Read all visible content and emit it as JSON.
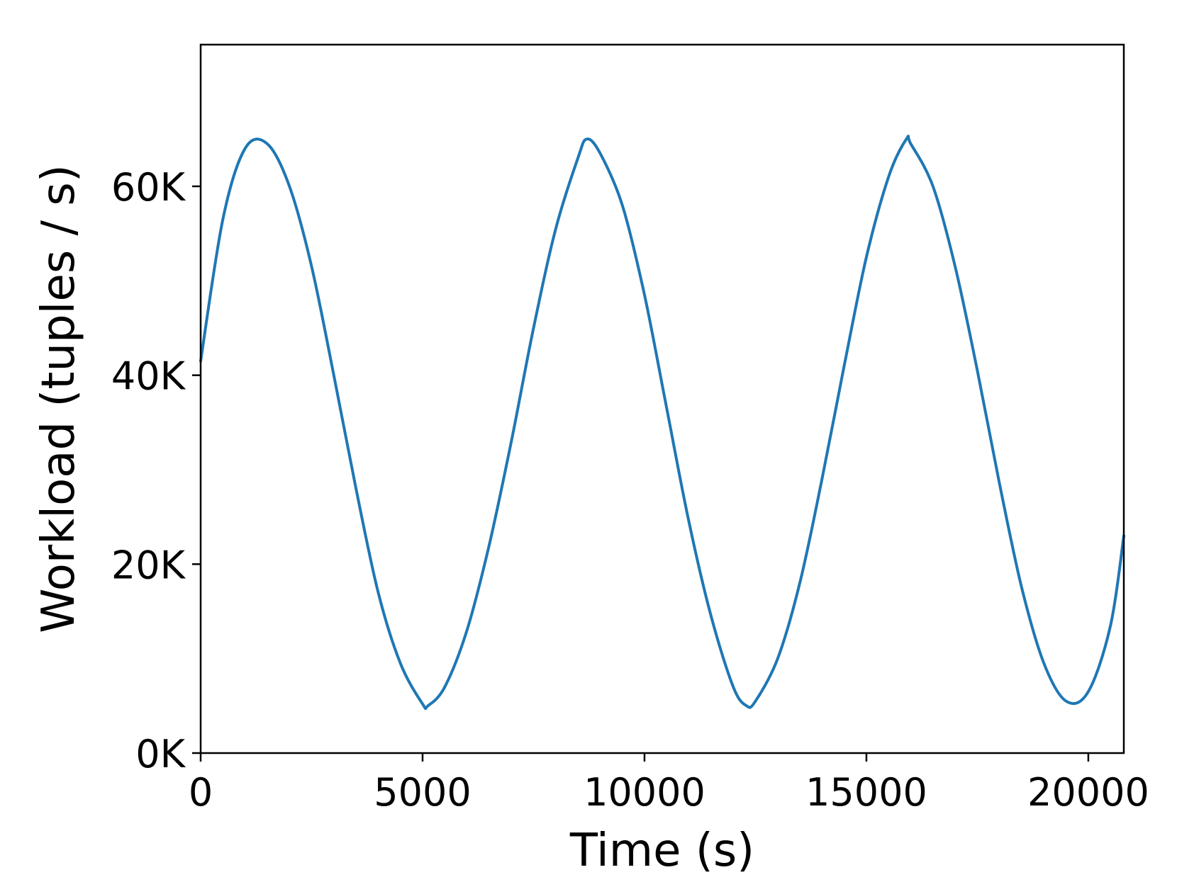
{
  "chart_data": {
    "type": "line",
    "title": "",
    "xlabel": "Time (s)",
    "ylabel": "Workload (tuples / s)",
    "xlim": [
      0,
      20800
    ],
    "ylim": [
      0,
      75000
    ],
    "x_ticks": [
      {
        "value": 0,
        "label": "0"
      },
      {
        "value": 5000,
        "label": "5000"
      },
      {
        "value": 10000,
        "label": "10000"
      },
      {
        "value": 15000,
        "label": "15000"
      },
      {
        "value": 20000,
        "label": "20000"
      }
    ],
    "y_ticks": [
      {
        "value": 0,
        "label": "0K"
      },
      {
        "value": 20000,
        "label": "20K"
      },
      {
        "value": 40000,
        "label": "40K"
      },
      {
        "value": 60000,
        "label": "60K"
      }
    ],
    "grid": false,
    "legend": "none",
    "series": [
      {
        "color": "#1f77b4",
        "x": [
          0,
          500,
          1000,
          1500,
          2000,
          2500,
          3000,
          3500,
          4000,
          4500,
          5000,
          5120,
          5500,
          6000,
          6500,
          7000,
          7500,
          8000,
          8500,
          8700,
          9000,
          9500,
          10000,
          10500,
          11000,
          11500,
          12000,
          12300,
          12500,
          13000,
          13500,
          14000,
          14500,
          15000,
          15500,
          15900,
          16000,
          16500,
          17000,
          17500,
          18000,
          18500,
          19000,
          19500,
          20000,
          20500,
          20800
        ],
        "y": [
          41500,
          56500,
          64000,
          64500,
          60000,
          51500,
          40000,
          28000,
          17000,
          9500,
          5200,
          5000,
          7000,
          13000,
          22000,
          33000,
          45000,
          55500,
          63000,
          65000,
          63500,
          58000,
          48500,
          36500,
          24500,
          14500,
          7000,
          5000,
          5500,
          10000,
          18000,
          29000,
          41000,
          52500,
          61000,
          65000,
          64500,
          60000,
          51500,
          40500,
          28500,
          17500,
          9500,
          5500,
          6500,
          13500,
          23000
        ]
      }
    ]
  }
}
